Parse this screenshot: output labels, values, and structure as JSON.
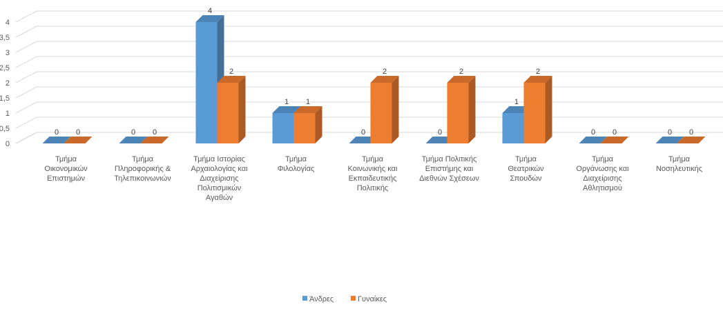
{
  "chart_data": {
    "type": "bar",
    "title": "",
    "xlabel": "",
    "ylabel": "",
    "ylim": [
      0,
      4
    ],
    "y_ticks": [
      "0",
      "0,5",
      "1",
      "1,5",
      "2",
      "2,5",
      "3",
      "3,5",
      "4"
    ],
    "grid": true,
    "legend_position": "bottom",
    "categories": [
      [
        "Τμήμα",
        "Οικονομικών",
        "Επιστημών"
      ],
      [
        "Τμήμα",
        "Πληροφορικής &",
        "Τηλεπικοινωνιών"
      ],
      [
        "Τμήμα Ιστορίας",
        "Αρχαιολογίας και",
        "Διαχείρισης",
        "Πολιτισμικών",
        "Αγαθών"
      ],
      [
        "Τμήμα",
        "Φιλολογίας"
      ],
      [
        "Τμήμα",
        "Κοινωνικής και",
        "Εκπαιδευτικής",
        "Πολιτικής"
      ],
      [
        "Τμήμα Πολιτικής",
        "Επιστήμης και",
        "Διεθνών Σχέσεων"
      ],
      [
        "Τμήμα",
        "Θεατρικών",
        "Σπουδών"
      ],
      [
        "Τμήμα",
        "Οργάνωσης και",
        "Διαχείρισης",
        "Αθλητισμού"
      ],
      [
        "Τμήμα",
        "Νοσηλευτικής"
      ]
    ],
    "series": [
      {
        "name": "Άνδρες",
        "color": "#5B9BD5",
        "values": [
          0,
          0,
          4,
          1,
          0,
          0,
          1,
          0,
          0
        ]
      },
      {
        "name": "Γυναίκες",
        "color": "#ED7D31",
        "values": [
          0,
          0,
          2,
          1,
          2,
          2,
          2,
          0,
          0
        ]
      }
    ]
  }
}
